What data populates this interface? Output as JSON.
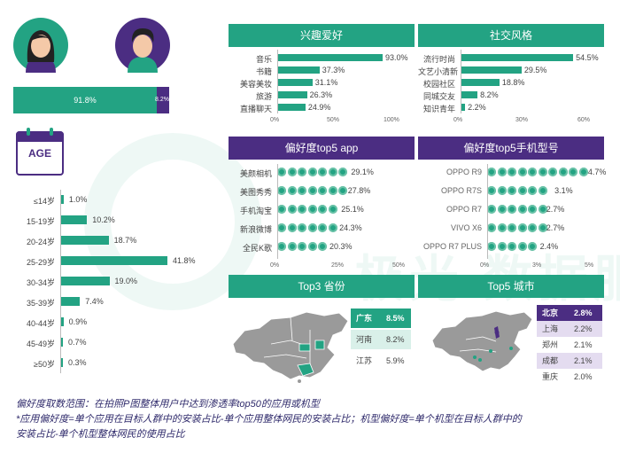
{
  "colors": {
    "green": "#23a383",
    "purple": "#4b2d82",
    "text": "#444444",
    "note": "#2f2a6b"
  },
  "icons": {
    "female": "female-avatar-icon",
    "male": "male-avatar-icon",
    "calendar": "calendar-age-icon",
    "china_map": "china-map-icon"
  },
  "watermark": {
    "cn": "极光 数据服务"
  },
  "gender": {
    "female_pct": "91.8%",
    "male_pct": "8.2%",
    "female_value": 91.8,
    "male_value": 8.2
  },
  "age": {
    "icon_label": "AGE",
    "chart_data": {
      "type": "bar",
      "categories": [
        "≤14岁",
        "15-19岁",
        "20-24岁",
        "25-29岁",
        "30-34岁",
        "35-39岁",
        "40-44岁",
        "45-49岁",
        "≥50岁"
      ],
      "values": [
        1.0,
        10.2,
        18.7,
        41.8,
        19.0,
        7.4,
        0.9,
        0.7,
        0.3
      ],
      "labels": [
        "1.0%",
        "10.2%",
        "18.7%",
        "41.8%",
        "19.0%",
        "7.4%",
        "0.9%",
        "0.7%",
        "0.3%"
      ]
    }
  },
  "interest": {
    "title": "兴趣爱好",
    "chart_data": {
      "type": "bar",
      "categories": [
        "音乐",
        "书籍",
        "美容美妆",
        "旅游",
        "直播聊天"
      ],
      "values": [
        93.0,
        37.3,
        31.1,
        26.3,
        24.9
      ],
      "labels": [
        "93.0%",
        "37.3%",
        "31.1%",
        "26.3%",
        "24.9%"
      ],
      "xticks": [
        "0%",
        "50%",
        "100%"
      ],
      "xlim": [
        0,
        100
      ]
    }
  },
  "social": {
    "title": "社交风格",
    "chart_data": {
      "type": "bar",
      "categories": [
        "流行时尚",
        "文艺小清新",
        "校园社区",
        "同城交友",
        "知识青年"
      ],
      "values": [
        54.5,
        29.5,
        18.8,
        8.2,
        2.2
      ],
      "labels": [
        "54.5%",
        "29.5%",
        "18.8%",
        "8.2%",
        "2.2%"
      ],
      "xticks": [
        "0%",
        "30%",
        "60%"
      ],
      "xlim": [
        0,
        60
      ]
    }
  },
  "apps": {
    "title": "偏好度top5 app",
    "chart_data": {
      "type": "bar",
      "categories": [
        "美颜相机",
        "美图秀秀",
        "手机淘宝",
        "新浪微博",
        "全民K歌"
      ],
      "values": [
        29.1,
        27.8,
        25.1,
        24.3,
        20.3
      ],
      "labels": [
        "29.1%",
        "27.8%",
        "25.1%",
        "24.3%",
        "20.3%"
      ],
      "xticks": [
        "0%",
        "25%",
        "50%"
      ],
      "xlim": [
        0,
        50
      ]
    }
  },
  "phones": {
    "title": "偏好度top5手机型号",
    "chart_data": {
      "type": "bar",
      "categories": [
        "OPPO R9",
        "OPPO R7S",
        "OPPO R7",
        "VIVO X6",
        "OPPO R7 PLUS"
      ],
      "values": [
        4.7,
        3.1,
        2.7,
        2.7,
        2.4
      ],
      "labels": [
        "4.7%",
        "3.1%",
        "2.7%",
        "2.7%",
        "2.4%"
      ],
      "xticks": [
        "0%",
        "3%",
        "5%"
      ],
      "xlim": [
        0,
        5
      ]
    }
  },
  "provinces": {
    "title": "Top3 省份",
    "rows": [
      {
        "name": "广东",
        "value": "8.5%"
      },
      {
        "name": "河南",
        "value": "8.2%"
      },
      {
        "name": "江苏",
        "value": "5.9%"
      }
    ]
  },
  "cities": {
    "title": "Top5 城市",
    "rows": [
      {
        "name": "北京",
        "value": "2.8%"
      },
      {
        "name": "上海",
        "value": "2.2%"
      },
      {
        "name": "郑州",
        "value": "2.1%"
      },
      {
        "name": "成都",
        "value": "2.1%"
      },
      {
        "name": "重庆",
        "value": "2.0%"
      }
    ]
  },
  "notes": {
    "line1": "偏好度取数范围：在拍照P图整体用户中达到渗透率top50的应用或机型",
    "line2": "*应用偏好度=单个应用在目标人群中的安装占比-单个应用整体网民的安装占比；机型偏好度=单个机型在目标人群中的",
    "line3": "安装占比-单个机型整体网民的使用占比"
  }
}
